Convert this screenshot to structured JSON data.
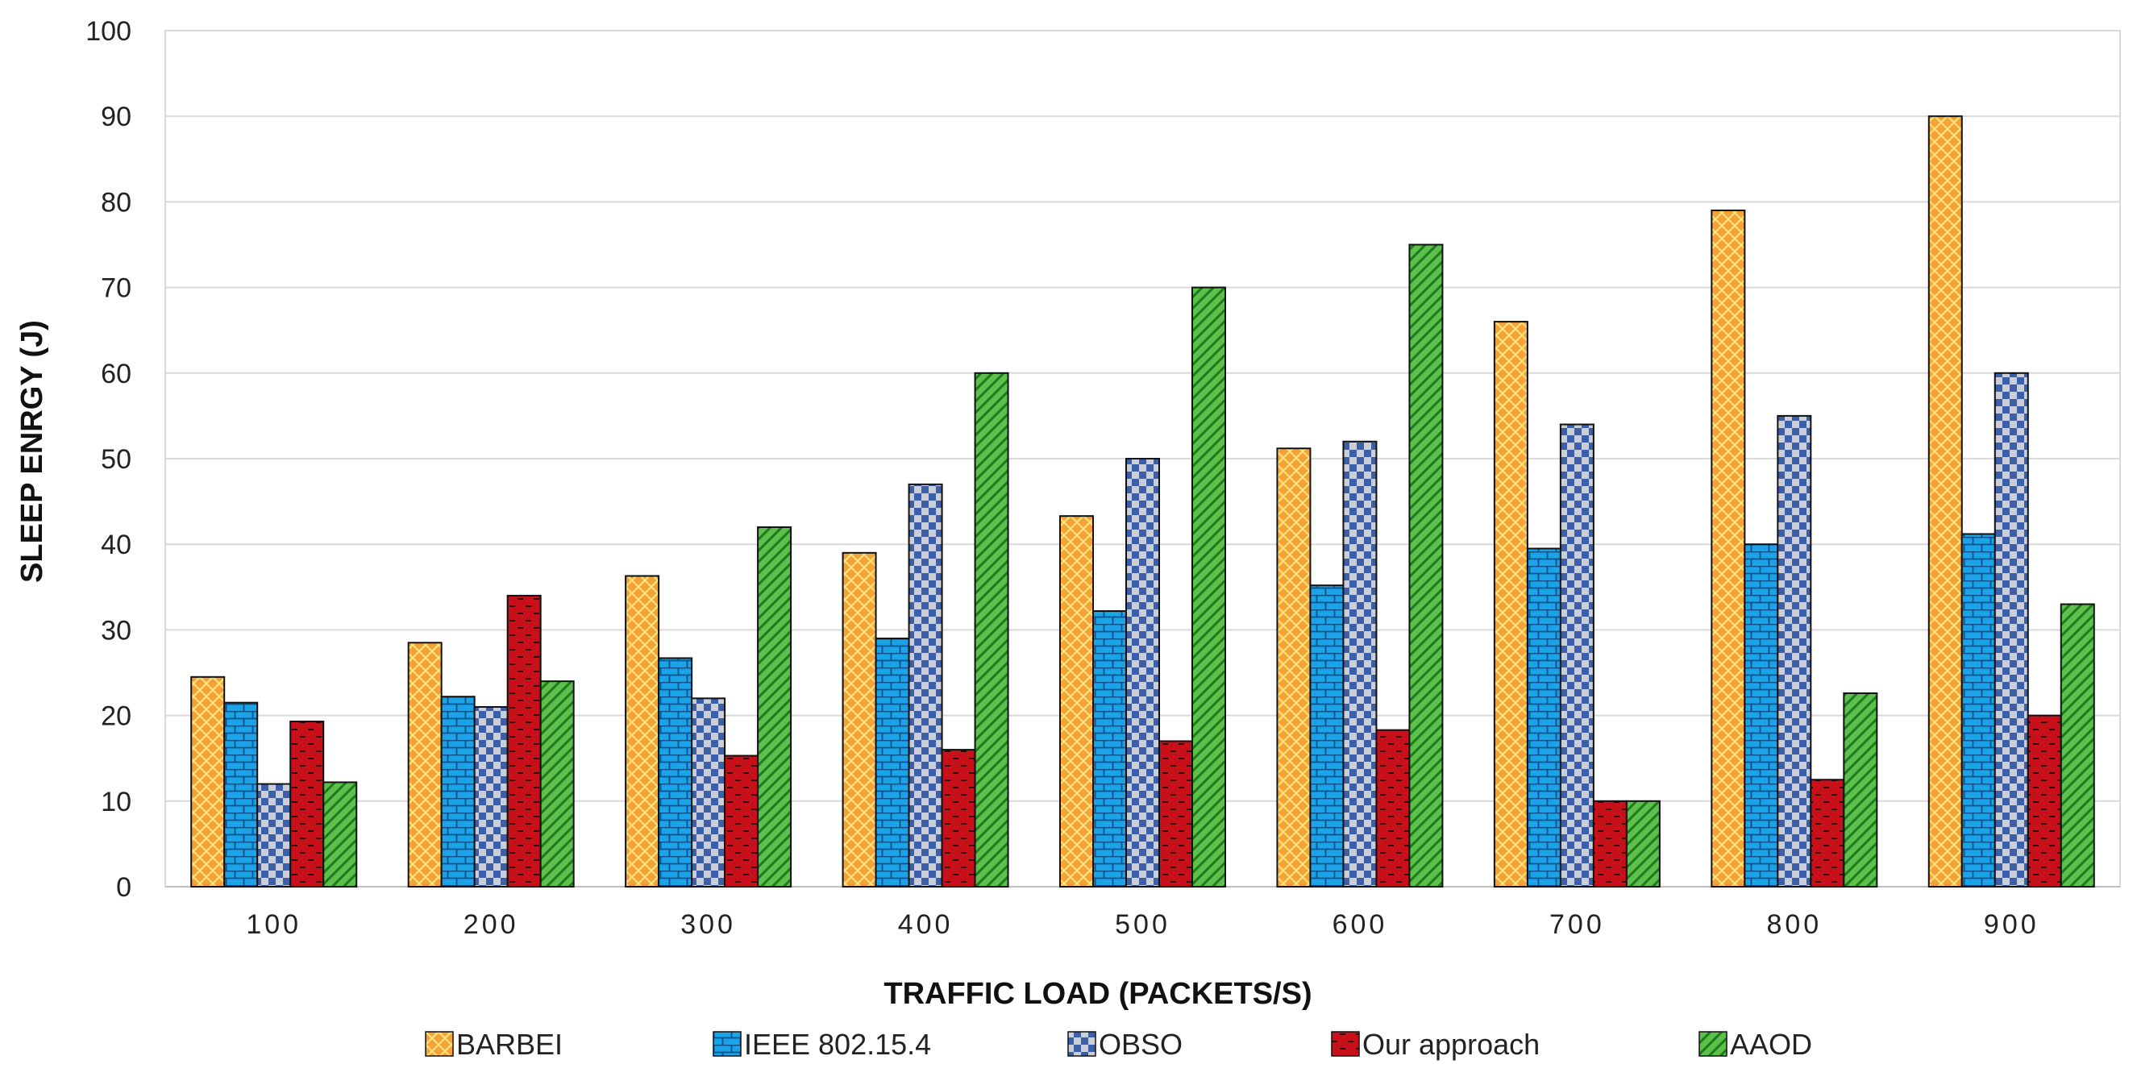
{
  "chart_data": {
    "type": "bar",
    "title": "",
    "xlabel": "TRAFFIC LOAD (PACKETS/S)",
    "ylabel": "SLEEP ENRGY (J)",
    "ylim": [
      0,
      100
    ],
    "yticks": [
      0,
      10,
      20,
      30,
      40,
      50,
      60,
      70,
      80,
      90,
      100
    ],
    "grid": true,
    "legend_position": "bottom",
    "categories": [
      "100",
      "200",
      "300",
      "400",
      "500",
      "600",
      "700",
      "800",
      "900"
    ],
    "series": [
      {
        "name": "BARBEI",
        "color": "#f4a23a",
        "values": [
          24.5,
          28.5,
          36.3,
          39,
          43.3,
          51.2,
          66,
          79,
          90
        ]
      },
      {
        "name": "IEEE 802.15.4",
        "color": "#1aa3e8",
        "values": [
          21.5,
          22.2,
          26.7,
          29,
          32.2,
          35.2,
          39.5,
          40,
          41.2
        ]
      },
      {
        "name": "OBSO",
        "color": "#3b5fa8",
        "values": [
          12,
          21,
          22,
          47,
          50,
          52,
          54,
          55,
          60
        ]
      },
      {
        "name": "Our approach",
        "color": "#c8101a",
        "values": [
          19.3,
          34,
          15.3,
          16,
          17,
          18.3,
          10,
          12.5,
          20
        ]
      },
      {
        "name": "AAOD",
        "color": "#5cc04a",
        "values": [
          12.2,
          24,
          42,
          60,
          70,
          75,
          10,
          22.6,
          33
        ]
      }
    ]
  }
}
